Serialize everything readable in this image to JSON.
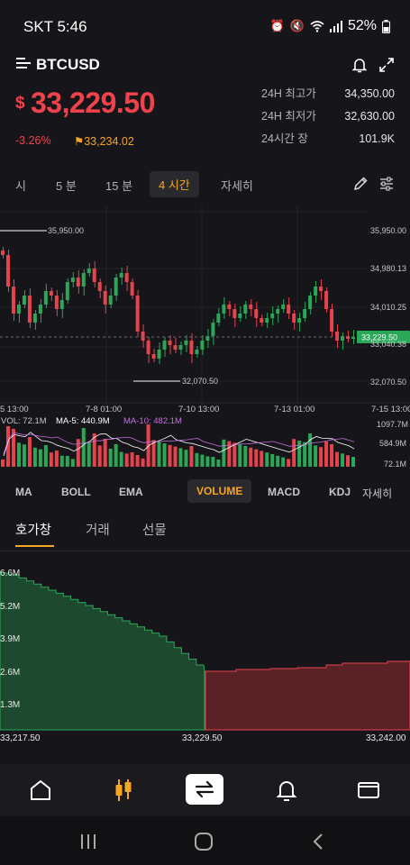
{
  "status": {
    "carrier": "SKT 5:46",
    "battery": "52%"
  },
  "header": {
    "symbol": "BTCUSD"
  },
  "price": {
    "currency": "$",
    "last": "33,229.50",
    "change": "-3.26%",
    "mark": "33,234.02"
  },
  "stats": [
    {
      "label": "24H 최고가",
      "value": "34,350.00"
    },
    {
      "label": "24H 최저가",
      "value": "32,630.00"
    },
    {
      "label": "24시간 장",
      "value": "101.9K"
    }
  ],
  "timeframes": [
    "시",
    "5 분",
    "15 분",
    "4 시간",
    "자세히"
  ],
  "active_timeframe": "4 시간",
  "chart": {
    "y_ticks": [
      "35,950.00",
      "34,980.13",
      "34,010.25",
      "33,040.38",
      "32,070.50"
    ],
    "x_ticks": [
      "5 13:00",
      "7-8 01:00",
      "7-10 13:00",
      "7-13 01:00",
      "7-15 13:00"
    ],
    "current_price_tag": "33,229.50",
    "high_annotation": "35,950.00",
    "low_annotation": "32,070.50",
    "volume_legend": {
      "vol": "VOL: 72.1M",
      "ma5": "MA-5: 440.9M",
      "ma10": "MA-10: 482.1M"
    },
    "volume_ticks": [
      "1097.7M",
      "584.9M",
      "72.1M"
    ],
    "colors": {
      "up": "#2aa857",
      "down": "#e8424c",
      "ma5": "#ffffff",
      "ma10": "#c36ee0"
    }
  },
  "indicators": [
    "MA",
    "BOLL",
    "EMA",
    "VOLUME",
    "MACD",
    "KDJ",
    "자세히"
  ],
  "active_indicator": "VOLUME",
  "tabs": [
    "호가창",
    "거래",
    "선물"
  ],
  "active_tab": "호가창",
  "depth": {
    "y_ticks": [
      "6.6M",
      "5.2M",
      "3.9M",
      "2.6M",
      "1.3M"
    ],
    "x_ticks": [
      "33,217.50",
      "33,229.50",
      "33,242.00"
    ],
    "colors": {
      "bid": "#1d4a2e",
      "bid_line": "#2aa857",
      "ask": "#5a2226",
      "ask_line": "#e8424c"
    }
  },
  "bottom_nav": [
    "home-icon",
    "candles-icon",
    "swap-icon",
    "bell-icon",
    "wallet-icon"
  ]
}
